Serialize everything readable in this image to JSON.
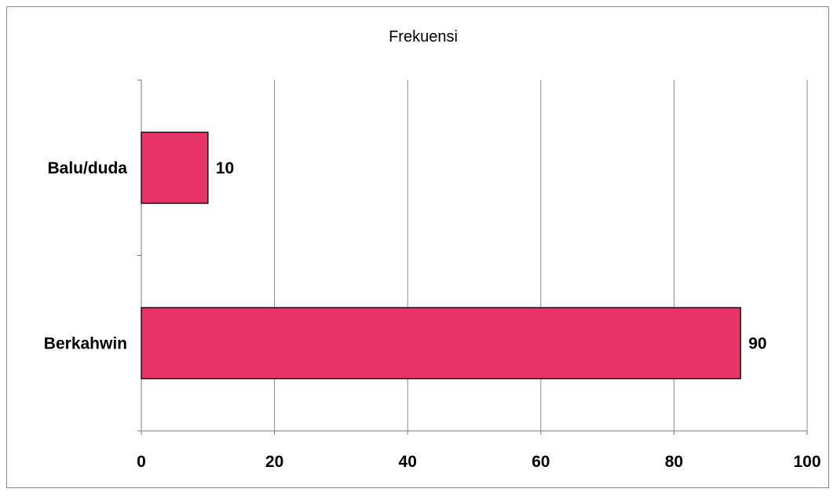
{
  "chart_data": {
    "type": "bar",
    "orientation": "horizontal",
    "title": "Frekuensi",
    "xlabel": "",
    "ylabel": "",
    "categories": [
      "Berkahwin",
      "Balu/duda"
    ],
    "values": [
      90,
      10
    ],
    "data_labels": [
      "90",
      "10"
    ],
    "xlim": [
      0,
      100
    ],
    "x_ticks": [
      0,
      20,
      40,
      60,
      80,
      100
    ],
    "x_tick_labels": [
      "0",
      "20",
      "40",
      "60",
      "80",
      "100"
    ],
    "grid": true,
    "legend": "none",
    "colors": {
      "bar_fill": "#e8336a",
      "bar_stroke": "#2a0a10",
      "gridline": "#8c8c8c",
      "axis": "#7a7a7a",
      "frame": "#8a8a8a"
    }
  }
}
